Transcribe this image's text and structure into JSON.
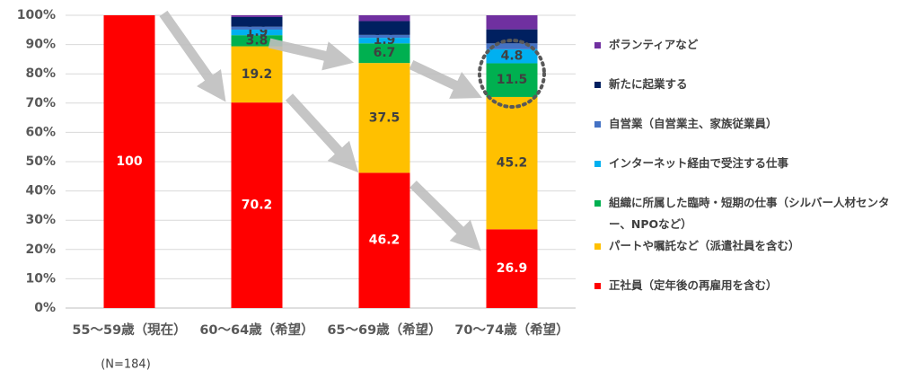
{
  "chart_data": {
    "type": "stacked_bar",
    "categories": [
      "55～59歳（現在）",
      "60～64歳（希望）",
      "65～69歳（希望）",
      "70～74歳（希望）"
    ],
    "series": [
      {
        "name": "正社員（定年後の再雇用を含む）",
        "color": "#ff0000",
        "values": [
          100,
          70.2,
          46.2,
          26.9
        ],
        "data_labels": true
      },
      {
        "name": "パートや嘱託など（派遣社員を含む）",
        "color": "#ffc000",
        "values": [
          0,
          19.2,
          37.5,
          45.2
        ],
        "data_labels": true
      },
      {
        "name": "組織に所属した臨時・短期の仕事（シルバー人材センター、NPOなど）",
        "color": "#00b050",
        "values": [
          0,
          3.8,
          6.7,
          11.5
        ],
        "data_labels": true
      },
      {
        "name": "インターネット経由で受注する仕事",
        "color": "#00b0f0",
        "values": [
          0,
          1.9,
          1.9,
          4.8
        ],
        "data_labels": true
      },
      {
        "name": "自営業（自営業主、家族従業員）",
        "color": "#4472c4",
        "values": [
          0,
          1.0,
          1.0,
          2.0
        ],
        "data_labels": false
      },
      {
        "name": "新たに起業する",
        "color": "#002060",
        "values": [
          0,
          3.3,
          4.7,
          4.8
        ],
        "data_labels": false
      },
      {
        "name": "ボランティアなど",
        "color": "#7030a0",
        "values": [
          0,
          0.6,
          2.0,
          4.8
        ],
        "data_labels": false
      }
    ],
    "ylim": [
      0,
      100
    ],
    "yticks": [
      {
        "value": 0,
        "label": "0%"
      },
      {
        "value": 10,
        "label": "10%"
      },
      {
        "value": 20,
        "label": "20%"
      },
      {
        "value": 30,
        "label": "30%"
      },
      {
        "value": 40,
        "label": "40%"
      },
      {
        "value": 50,
        "label": "50%"
      },
      {
        "value": 60,
        "label": "60%"
      },
      {
        "value": 70,
        "label": "70%"
      },
      {
        "value": 80,
        "label": "80%"
      },
      {
        "value": 90,
        "label": "90%"
      },
      {
        "value": 100,
        "label": "100%"
      }
    ],
    "grid": true,
    "annotations": [
      "(N=184)"
    ]
  }
}
